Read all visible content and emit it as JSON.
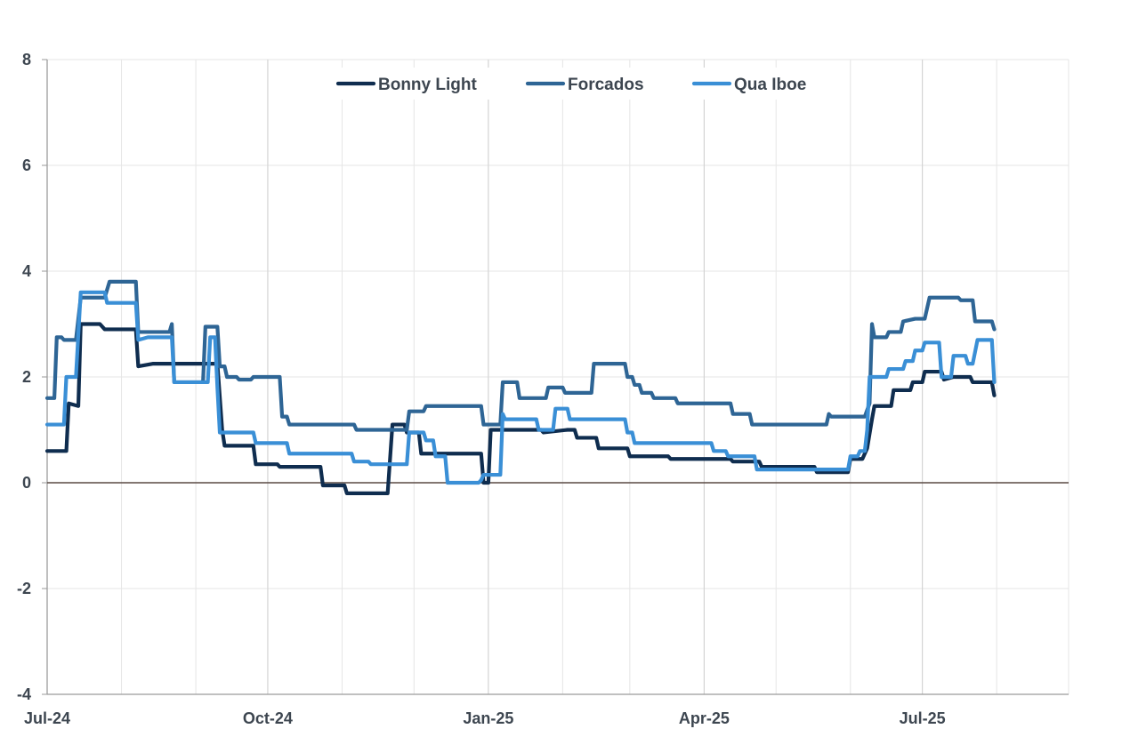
{
  "chart_data": {
    "type": "line",
    "title": "",
    "xlabel": "",
    "ylabel": "",
    "ylim": [
      -4,
      8
    ],
    "yticks": [
      -4,
      -2,
      0,
      2,
      4,
      6,
      8
    ],
    "xlim": [
      "2024-07-01",
      "2025-08-31"
    ],
    "xticks": [
      {
        "date": "2024-07-01",
        "label": "Jul-24"
      },
      {
        "date": "2024-10-01",
        "label": "Oct-24"
      },
      {
        "date": "2025-01-01",
        "label": "Jan-25"
      },
      {
        "date": "2025-04-01",
        "label": "Apr-25"
      },
      {
        "date": "2025-07-01",
        "label": "Jul-25"
      }
    ],
    "minor_gridlines": [
      "2024-08-01",
      "2024-09-01",
      "2024-11-01",
      "2024-12-01",
      "2025-02-01",
      "2025-03-01",
      "2025-05-01",
      "2025-06-01",
      "2025-08-01"
    ],
    "grid": true,
    "zero_line": true,
    "legend": {
      "placement": "top-center"
    },
    "series": [
      {
        "name": "Bonny Light",
        "color": "#0f2d4f",
        "points": [
          [
            "2024-07-01",
            0.6
          ],
          [
            "2024-07-09",
            0.6
          ],
          [
            "2024-07-10",
            1.5
          ],
          [
            "2024-07-14",
            1.45
          ],
          [
            "2024-07-15",
            3.0
          ],
          [
            "2024-07-23",
            3.0
          ],
          [
            "2024-07-25",
            2.9
          ],
          [
            "2024-08-07",
            2.9
          ],
          [
            "2024-08-08",
            2.2
          ],
          [
            "2024-08-14",
            2.25
          ],
          [
            "2024-09-10",
            2.25
          ],
          [
            "2024-09-12",
            1.0
          ],
          [
            "2024-09-13",
            0.7
          ],
          [
            "2024-09-25",
            0.7
          ],
          [
            "2024-09-26",
            0.35
          ],
          [
            "2024-10-05",
            0.35
          ],
          [
            "2024-10-06",
            0.3
          ],
          [
            "2024-10-23",
            0.3
          ],
          [
            "2024-10-24",
            -0.05
          ],
          [
            "2024-11-02",
            -0.05
          ],
          [
            "2024-11-03",
            -0.2
          ],
          [
            "2024-11-20",
            -0.2
          ],
          [
            "2024-11-22",
            1.1
          ],
          [
            "2024-11-27",
            1.1
          ],
          [
            "2024-11-28",
            0.95
          ],
          [
            "2024-12-03",
            0.95
          ],
          [
            "2024-12-04",
            0.55
          ],
          [
            "2024-12-29",
            0.55
          ],
          [
            "2024-12-30",
            0.0
          ],
          [
            "2025-01-01",
            0.0
          ],
          [
            "2025-01-02",
            1.0
          ],
          [
            "2025-01-23",
            1.0
          ],
          [
            "2025-01-24",
            0.95
          ],
          [
            "2025-02-03",
            1.0
          ],
          [
            "2025-02-06",
            1.0
          ],
          [
            "2025-02-07",
            0.85
          ],
          [
            "2025-02-15",
            0.85
          ],
          [
            "2025-02-16",
            0.65
          ],
          [
            "2025-02-28",
            0.65
          ],
          [
            "2025-03-01",
            0.5
          ],
          [
            "2025-03-17",
            0.5
          ],
          [
            "2025-03-18",
            0.45
          ],
          [
            "2025-04-12",
            0.45
          ],
          [
            "2025-04-13",
            0.4
          ],
          [
            "2025-04-24",
            0.4
          ],
          [
            "2025-04-25",
            0.3
          ],
          [
            "2025-05-17",
            0.3
          ],
          [
            "2025-05-18",
            0.2
          ],
          [
            "2025-05-31",
            0.2
          ],
          [
            "2025-06-01",
            0.45
          ],
          [
            "2025-06-06",
            0.45
          ],
          [
            "2025-06-07",
            0.55
          ],
          [
            "2025-06-08",
            0.65
          ],
          [
            "2025-06-10",
            1.2
          ],
          [
            "2025-06-11",
            1.45
          ],
          [
            "2025-06-18",
            1.45
          ],
          [
            "2025-06-19",
            1.75
          ],
          [
            "2025-06-26",
            1.75
          ],
          [
            "2025-06-27",
            1.9
          ],
          [
            "2025-07-01",
            1.9
          ],
          [
            "2025-07-02",
            2.1
          ],
          [
            "2025-07-09",
            2.1
          ],
          [
            "2025-07-10",
            1.95
          ],
          [
            "2025-07-14",
            2.0
          ],
          [
            "2025-07-21",
            2.0
          ],
          [
            "2025-07-22",
            1.9
          ],
          [
            "2025-07-30",
            1.9
          ],
          [
            "2025-07-31",
            1.65
          ]
        ]
      },
      {
        "name": "Forcados",
        "color": "#2e6595",
        "points": [
          [
            "2024-07-01",
            1.6
          ],
          [
            "2024-07-04",
            1.6
          ],
          [
            "2024-07-05",
            2.75
          ],
          [
            "2024-07-07",
            2.75
          ],
          [
            "2024-07-08",
            2.7
          ],
          [
            "2024-07-13",
            2.7
          ],
          [
            "2024-07-15",
            3.5
          ],
          [
            "2024-07-25",
            3.5
          ],
          [
            "2024-07-27",
            3.8
          ],
          [
            "2024-08-07",
            3.8
          ],
          [
            "2024-08-08",
            2.85
          ],
          [
            "2024-08-21",
            2.85
          ],
          [
            "2024-08-22",
            3.0
          ],
          [
            "2024-08-23",
            1.9
          ],
          [
            "2024-09-04",
            1.9
          ],
          [
            "2024-09-05",
            2.95
          ],
          [
            "2024-09-10",
            2.95
          ],
          [
            "2024-09-11",
            2.2
          ],
          [
            "2024-09-13",
            2.2
          ],
          [
            "2024-09-14",
            2.0
          ],
          [
            "2024-09-18",
            2.0
          ],
          [
            "2024-09-19",
            1.95
          ],
          [
            "2024-09-24",
            1.95
          ],
          [
            "2024-09-25",
            2.0
          ],
          [
            "2024-10-06",
            2.0
          ],
          [
            "2024-10-07",
            1.25
          ],
          [
            "2024-10-09",
            1.25
          ],
          [
            "2024-10-10",
            1.1
          ],
          [
            "2024-11-06",
            1.1
          ],
          [
            "2024-11-07",
            1.0
          ],
          [
            "2024-11-28",
            1.0
          ],
          [
            "2024-11-29",
            1.35
          ],
          [
            "2024-12-05",
            1.35
          ],
          [
            "2024-12-06",
            1.45
          ],
          [
            "2024-12-29",
            1.45
          ],
          [
            "2024-12-30",
            1.1
          ],
          [
            "2025-01-06",
            1.1
          ],
          [
            "2025-01-07",
            1.9
          ],
          [
            "2025-01-13",
            1.9
          ],
          [
            "2025-01-14",
            1.6
          ],
          [
            "2025-01-25",
            1.6
          ],
          [
            "2025-01-26",
            1.8
          ],
          [
            "2025-02-01",
            1.8
          ],
          [
            "2025-02-02",
            1.7
          ],
          [
            "2025-02-13",
            1.7
          ],
          [
            "2025-02-14",
            2.25
          ],
          [
            "2025-02-27",
            2.25
          ],
          [
            "2025-02-28",
            2.0
          ],
          [
            "2025-03-02",
            2.0
          ],
          [
            "2025-03-03",
            1.85
          ],
          [
            "2025-03-05",
            1.85
          ],
          [
            "2025-03-06",
            1.7
          ],
          [
            "2025-03-10",
            1.7
          ],
          [
            "2025-03-11",
            1.6
          ],
          [
            "2025-03-20",
            1.6
          ],
          [
            "2025-03-21",
            1.5
          ],
          [
            "2025-04-01",
            1.5
          ],
          [
            "2025-04-02",
            1.5
          ],
          [
            "2025-04-12",
            1.5
          ],
          [
            "2025-04-13",
            1.3
          ],
          [
            "2025-04-20",
            1.3
          ],
          [
            "2025-04-21",
            1.1
          ],
          [
            "2025-05-22",
            1.1
          ],
          [
            "2025-05-23",
            1.3
          ],
          [
            "2025-05-24",
            1.25
          ],
          [
            "2025-06-07",
            1.25
          ],
          [
            "2025-06-09",
            1.5
          ],
          [
            "2025-06-10",
            3.0
          ],
          [
            "2025-06-11",
            2.75
          ],
          [
            "2025-06-16",
            2.75
          ],
          [
            "2025-06-17",
            2.85
          ],
          [
            "2025-06-22",
            2.85
          ],
          [
            "2025-06-23",
            3.05
          ],
          [
            "2025-06-28",
            3.1
          ],
          [
            "2025-07-02",
            3.1
          ],
          [
            "2025-07-04",
            3.5
          ],
          [
            "2025-07-16",
            3.5
          ],
          [
            "2025-07-17",
            3.45
          ],
          [
            "2025-07-22",
            3.45
          ],
          [
            "2025-07-23",
            3.05
          ],
          [
            "2025-07-30",
            3.05
          ],
          [
            "2025-07-31",
            2.9
          ]
        ]
      },
      {
        "name": "Qua Iboe",
        "color": "#3a8fd6",
        "points": [
          [
            "2024-07-01",
            1.1
          ],
          [
            "2024-07-08",
            1.1
          ],
          [
            "2024-07-09",
            2.0
          ],
          [
            "2024-07-13",
            2.0
          ],
          [
            "2024-07-15",
            3.6
          ],
          [
            "2024-07-25",
            3.6
          ],
          [
            "2024-07-26",
            3.4
          ],
          [
            "2024-08-07",
            3.4
          ],
          [
            "2024-08-08",
            2.7
          ],
          [
            "2024-08-12",
            2.75
          ],
          [
            "2024-08-22",
            2.75
          ],
          [
            "2024-08-23",
            1.9
          ],
          [
            "2024-09-06",
            1.9
          ],
          [
            "2024-09-07",
            2.75
          ],
          [
            "2024-09-09",
            2.75
          ],
          [
            "2024-09-10",
            1.8
          ],
          [
            "2024-09-11",
            0.95
          ],
          [
            "2024-09-25",
            0.95
          ],
          [
            "2024-09-26",
            0.75
          ],
          [
            "2024-10-09",
            0.75
          ],
          [
            "2024-10-10",
            0.55
          ],
          [
            "2024-11-05",
            0.55
          ],
          [
            "2024-11-06",
            0.4
          ],
          [
            "2024-11-12",
            0.4
          ],
          [
            "2024-11-13",
            0.35
          ],
          [
            "2024-11-28",
            0.35
          ],
          [
            "2024-11-29",
            0.95
          ],
          [
            "2024-12-05",
            0.95
          ],
          [
            "2024-12-06",
            0.8
          ],
          [
            "2024-12-09",
            0.8
          ],
          [
            "2024-12-10",
            0.5
          ],
          [
            "2024-12-14",
            0.5
          ],
          [
            "2024-12-15",
            0.0
          ],
          [
            "2024-12-28",
            0.0
          ],
          [
            "2024-12-29",
            0.05
          ],
          [
            "2024-12-30",
            0.15
          ],
          [
            "2025-01-06",
            0.15
          ],
          [
            "2025-01-07",
            1.3
          ],
          [
            "2025-01-08",
            1.2
          ],
          [
            "2025-01-21",
            1.2
          ],
          [
            "2025-01-22",
            1.0
          ],
          [
            "2025-01-28",
            1.0
          ],
          [
            "2025-01-29",
            1.4
          ],
          [
            "2025-02-03",
            1.4
          ],
          [
            "2025-02-04",
            1.2
          ],
          [
            "2025-02-27",
            1.2
          ],
          [
            "2025-02-28",
            0.95
          ],
          [
            "2025-03-02",
            0.95
          ],
          [
            "2025-03-03",
            0.75
          ],
          [
            "2025-03-25",
            0.75
          ],
          [
            "2025-03-26",
            0.75
          ],
          [
            "2025-04-04",
            0.75
          ],
          [
            "2025-04-05",
            0.6
          ],
          [
            "2025-04-10",
            0.6
          ],
          [
            "2025-04-11",
            0.5
          ],
          [
            "2025-04-22",
            0.5
          ],
          [
            "2025-04-23",
            0.25
          ],
          [
            "2025-05-21",
            0.25
          ],
          [
            "2025-05-22",
            0.25
          ],
          [
            "2025-05-31",
            0.25
          ],
          [
            "2025-06-01",
            0.5
          ],
          [
            "2025-06-04",
            0.5
          ],
          [
            "2025-06-05",
            0.6
          ],
          [
            "2025-06-07",
            0.6
          ],
          [
            "2025-06-08",
            1.0
          ],
          [
            "2025-06-09",
            2.0
          ],
          [
            "2025-06-16",
            2.0
          ],
          [
            "2025-06-17",
            2.15
          ],
          [
            "2025-06-23",
            2.15
          ],
          [
            "2025-06-24",
            2.3
          ],
          [
            "2025-06-27",
            2.3
          ],
          [
            "2025-06-28",
            2.5
          ],
          [
            "2025-07-01",
            2.5
          ],
          [
            "2025-07-02",
            2.65
          ],
          [
            "2025-07-08",
            2.65
          ],
          [
            "2025-07-09",
            2.0
          ],
          [
            "2025-07-13",
            2.0
          ],
          [
            "2025-07-14",
            2.4
          ],
          [
            "2025-07-19",
            2.4
          ],
          [
            "2025-07-20",
            2.25
          ],
          [
            "2025-07-22",
            2.25
          ],
          [
            "2025-07-24",
            2.7
          ],
          [
            "2025-07-30",
            2.7
          ],
          [
            "2025-07-31",
            1.9
          ]
        ]
      }
    ]
  }
}
